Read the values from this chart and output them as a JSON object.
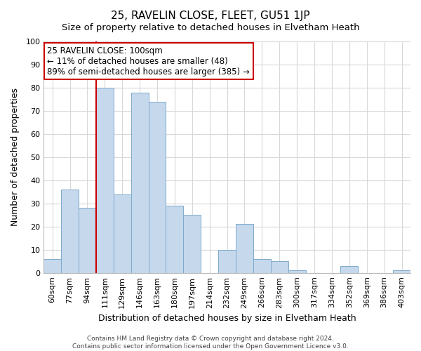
{
  "title": "25, RAVELIN CLOSE, FLEET, GU51 1JP",
  "subtitle": "Size of property relative to detached houses in Elvetham Heath",
  "xlabel": "Distribution of detached houses by size in Elvetham Heath",
  "ylabel": "Number of detached properties",
  "footer_line1": "Contains HM Land Registry data © Crown copyright and database right 2024.",
  "footer_line2": "Contains public sector information licensed under the Open Government Licence v3.0.",
  "bar_labels": [
    "60sqm",
    "77sqm",
    "94sqm",
    "111sqm",
    "129sqm",
    "146sqm",
    "163sqm",
    "180sqm",
    "197sqm",
    "214sqm",
    "232sqm",
    "249sqm",
    "266sqm",
    "283sqm",
    "300sqm",
    "317sqm",
    "334sqm",
    "352sqm",
    "369sqm",
    "386sqm",
    "403sqm"
  ],
  "bar_values": [
    6,
    36,
    28,
    80,
    34,
    78,
    74,
    29,
    25,
    0,
    10,
    21,
    6,
    5,
    1,
    0,
    0,
    3,
    0,
    0,
    1
  ],
  "bar_color": "#c5d8ec",
  "bar_edge_color": "#7eaacb",
  "vline_x": 2.5,
  "vline_color": "#cc0000",
  "ylim": [
    0,
    100
  ],
  "yticks": [
    0,
    10,
    20,
    30,
    40,
    50,
    60,
    70,
    80,
    90,
    100
  ],
  "annotation_title": "25 RAVELIN CLOSE: 100sqm",
  "annotation_line2": "← 11% of detached houses are smaller (48)",
  "annotation_line3": "89% of semi-detached houses are larger (385) →",
  "background_color": "#ffffff",
  "grid_color": "#d8d8d8",
  "title_fontsize": 11,
  "subtitle_fontsize": 9.5,
  "xlabel_fontsize": 9,
  "ylabel_fontsize": 9,
  "tick_fontsize": 8,
  "annot_fontsize": 8.5,
  "footer_fontsize": 6.5
}
